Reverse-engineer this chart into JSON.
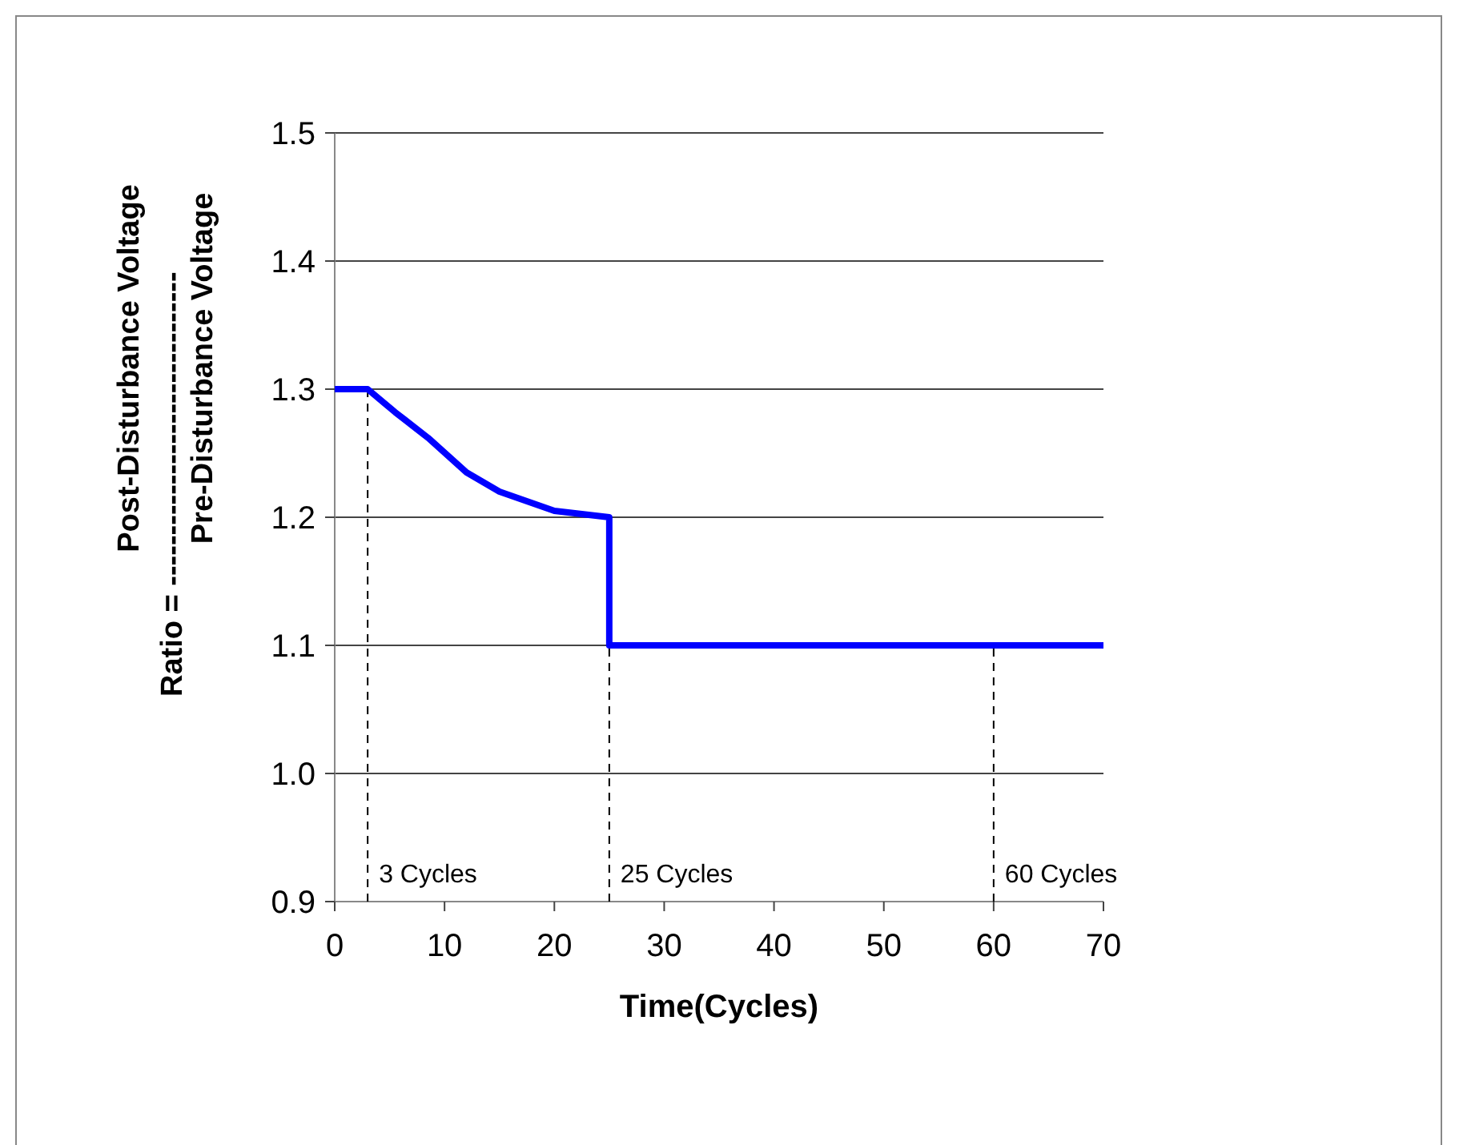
{
  "chart_data": {
    "type": "line",
    "xlabel": "Time(Cycles)",
    "ylabel": "Post-Disturbance Voltage\nRatio = -------------------------------\nPre-Disturbance Voltage",
    "series": [
      {
        "color": "#0000ff",
        "x": [
          0,
          3,
          5.5,
          8.5,
          12,
          15,
          20,
          25,
          25,
          60,
          70
        ],
        "values": [
          1.3,
          1.3,
          1.282,
          1.262,
          1.235,
          1.22,
          1.205,
          1.2,
          1.1,
          1.1,
          1.1
        ]
      }
    ],
    "xlim": [
      0,
      70
    ],
    "xticks": [
      0,
      10,
      20,
      30,
      40,
      50,
      60,
      70
    ],
    "ylim": [
      0.9,
      1.5
    ],
    "yticks": [
      {
        "value": 0.9,
        "label": "0.9"
      },
      {
        "value": 1.0,
        "label": "1.0"
      },
      {
        "value": 1.1,
        "label": "1.1"
      },
      {
        "value": 1.2,
        "label": "1.2"
      },
      {
        "value": 1.3,
        "label": "1.3"
      },
      {
        "value": 1.4,
        "label": "1.4"
      },
      {
        "value": 1.5,
        "label": "1.5"
      }
    ],
    "grid": "y",
    "line_style": "solid",
    "marker": "none",
    "ref_lines": [
      {
        "axis": "x",
        "value": 3,
        "label": "3 Cycles",
        "color": "#000000",
        "line_style": "dashed"
      },
      {
        "axis": "x",
        "value": 25,
        "label": "25 Cycles",
        "color": "#000000",
        "line_style": "dashed"
      },
      {
        "axis": "x",
        "value": 60,
        "label": "60 Cycles",
        "color": "#000000",
        "line_style": "dashed"
      }
    ]
  }
}
